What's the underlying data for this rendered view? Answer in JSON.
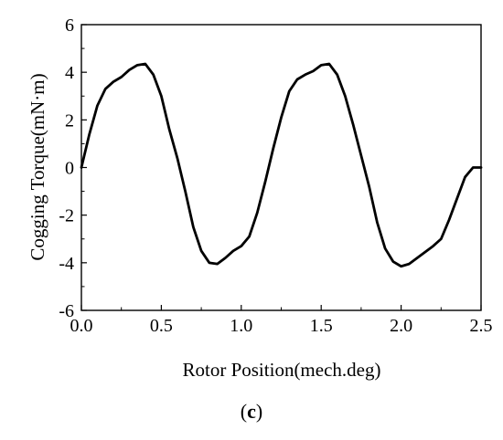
{
  "chart_data": {
    "type": "line",
    "xlabel": "Rotor Position(mech.deg)",
    "ylabel": "Cogging Torque(mN·m)",
    "xlim": [
      0,
      2.5
    ],
    "ylim": [
      -6,
      6
    ],
    "x_ticks": [
      0.0,
      0.5,
      1.0,
      1.5,
      2.0,
      2.5
    ],
    "x_tick_labels": [
      "0.0",
      "0.5",
      "1.0",
      "1.5",
      "2.0",
      "2.5"
    ],
    "y_ticks": [
      -6,
      -4,
      -2,
      0,
      2,
      4,
      6
    ],
    "y_tick_labels": [
      "-6",
      "-4",
      "-2",
      "0",
      "2",
      "4",
      "6"
    ],
    "grid": false,
    "line_color": "#000000",
    "series": [
      {
        "x": [
          0.0,
          0.05,
          0.1,
          0.15,
          0.2,
          0.25,
          0.3,
          0.35,
          0.4,
          0.45,
          0.5,
          0.55,
          0.6,
          0.65,
          0.7,
          0.75,
          0.8,
          0.85,
          0.9,
          0.95,
          1.0,
          1.05,
          1.1,
          1.15,
          1.2,
          1.25,
          1.3,
          1.35,
          1.4,
          1.45,
          1.5,
          1.55,
          1.6,
          1.65,
          1.7,
          1.75,
          1.8,
          1.85,
          1.9,
          1.95,
          2.0,
          2.05,
          2.1,
          2.15,
          2.2,
          2.25,
          2.3,
          2.35,
          2.4,
          2.45,
          2.5
        ],
        "y": [
          0.0,
          1.4,
          2.6,
          3.3,
          3.6,
          3.8,
          4.1,
          4.3,
          4.35,
          3.9,
          3.0,
          1.6,
          0.4,
          -1.0,
          -2.5,
          -3.5,
          -4.0,
          -4.05,
          -3.8,
          -3.5,
          -3.3,
          -2.9,
          -1.9,
          -0.6,
          0.8,
          2.1,
          3.2,
          3.7,
          3.9,
          4.05,
          4.3,
          4.35,
          3.9,
          3.0,
          1.8,
          0.5,
          -0.8,
          -2.3,
          -3.4,
          -3.95,
          -4.15,
          -4.05,
          -3.8,
          -3.55,
          -3.3,
          -3.0,
          -2.2,
          -1.3,
          -0.4,
          0.0,
          0.0
        ]
      }
    ]
  },
  "panel_label": {
    "open": "(",
    "letter": "c",
    "close": ")"
  }
}
